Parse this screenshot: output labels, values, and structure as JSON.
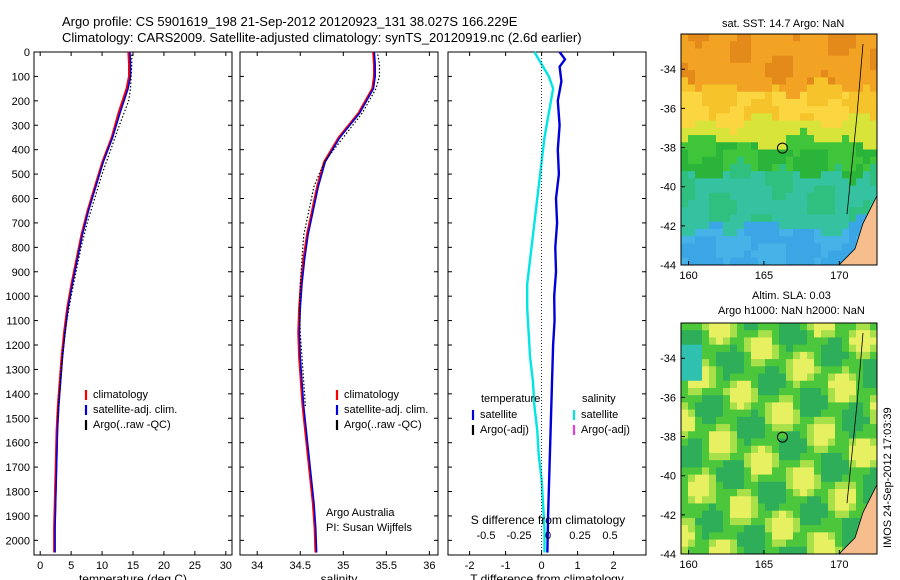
{
  "title_line1": "Argo profile: CS 5901619_198 21-Sep-2012 20120923_131 38.027S 166.229E",
  "title_line2": "Climatology: CARS2009. Satellite-adjusted climatology: synTS_20120919.nc (2.6d earlier)",
  "colors": {
    "climatology": "#ff0000",
    "satellite": "#0000dd",
    "argo": "#000000",
    "salinity_sat": "#00e5e5",
    "salinity_argo": "#e040e0"
  },
  "chart_data": [
    {
      "type": "line",
      "xlabel": "temperature (deg C)",
      "xlim": [
        -1,
        31
      ],
      "ylim": [
        2060,
        0
      ],
      "xticks": [
        0,
        5,
        10,
        15,
        20,
        25,
        30
      ],
      "yticks": [
        0,
        100,
        200,
        300,
        400,
        500,
        600,
        700,
        800,
        900,
        1000,
        1100,
        1200,
        1300,
        1400,
        1500,
        1600,
        1700,
        1800,
        1900,
        2000
      ],
      "legend": [
        "climatology",
        "satellite-adj. clim.",
        "Argo(..raw -QC)"
      ],
      "series": [
        {
          "name": "climatology",
          "x": [
            14.3,
            14.4,
            14.4,
            14.0,
            12.7,
            11.6,
            10.1,
            8.9,
            7.7,
            6.7,
            5.9,
            5.1,
            4.4,
            3.9,
            3.5,
            3.2,
            2.9,
            2.7,
            2.6,
            2.5,
            2.4,
            2.3,
            2.3
          ],
          "y": [
            0,
            50,
            100,
            150,
            250,
            350,
            450,
            550,
            650,
            750,
            850,
            950,
            1050,
            1150,
            1250,
            1350,
            1450,
            1550,
            1650,
            1750,
            1850,
            1950,
            2050
          ]
        },
        {
          "name": "satellite-adj. clim.",
          "x": [
            14.5,
            14.6,
            14.6,
            14.2,
            12.9,
            11.7,
            10.2,
            9.0,
            7.8,
            6.8,
            6.0,
            5.2,
            4.5,
            4.0,
            3.6,
            3.3,
            3.0,
            2.8,
            2.7,
            2.6,
            2.5,
            2.4,
            2.4
          ],
          "y": [
            0,
            50,
            100,
            150,
            250,
            350,
            450,
            550,
            650,
            750,
            850,
            950,
            1050,
            1150,
            1250,
            1350,
            1450,
            1550,
            1650,
            1750,
            1850,
            1950,
            2050
          ]
        },
        {
          "name": "Argo(..raw -QC)",
          "x": [
            14.8,
            14.8,
            14.7,
            14.6,
            14.3,
            12.8,
            11.4,
            10.0,
            8.8,
            7.6,
            6.6,
            5.8,
            5.0,
            4.3,
            3.8,
            3.4,
            3.1,
            2.8
          ],
          "y": [
            10,
            50,
            100,
            150,
            200,
            300,
            400,
            500,
            600,
            700,
            800,
            900,
            1000,
            1100,
            1200,
            1300,
            1400,
            1500
          ]
        }
      ]
    },
    {
      "type": "line",
      "xlabel": "salinity",
      "xlim": [
        33.8,
        36.1
      ],
      "ylim": [
        2060,
        0
      ],
      "xticks": [
        34,
        34.5,
        35,
        35.5,
        36
      ],
      "legend": [
        "climatology",
        "satellite-adj. clim.",
        "Argo(..raw -QC)"
      ],
      "annotation": [
        "Argo Australia",
        "PI: Susan Wijffels"
      ],
      "series": [
        {
          "name": "climatology",
          "x": [
            35.35,
            35.36,
            35.36,
            35.34,
            35.18,
            34.95,
            34.78,
            34.7,
            34.64,
            34.58,
            34.54,
            34.51,
            34.49,
            34.48,
            34.49,
            34.51,
            34.53,
            34.56,
            34.59,
            34.62,
            34.65,
            34.67,
            34.68
          ],
          "y": [
            0,
            50,
            100,
            150,
            250,
            350,
            450,
            550,
            650,
            750,
            850,
            950,
            1050,
            1150,
            1250,
            1350,
            1450,
            1550,
            1650,
            1750,
            1850,
            1950,
            2050
          ]
        },
        {
          "name": "satellite-adj. clim.",
          "x": [
            35.36,
            35.37,
            35.37,
            35.35,
            35.19,
            34.96,
            34.79,
            34.71,
            34.65,
            34.59,
            34.55,
            34.52,
            34.5,
            34.49,
            34.5,
            34.52,
            34.54,
            34.57,
            34.6,
            34.63,
            34.66,
            34.68,
            34.69
          ],
          "y": [
            0,
            50,
            100,
            150,
            250,
            350,
            450,
            550,
            650,
            750,
            850,
            950,
            1050,
            1150,
            1250,
            1350,
            1450,
            1550,
            1650,
            1750,
            1850,
            1950,
            2050
          ]
        },
        {
          "name": "Argo(..raw -QC)",
          "x": [
            35.4,
            35.42,
            35.42,
            35.38,
            35.22,
            35.0,
            34.78,
            34.66,
            34.6,
            34.54,
            34.52,
            34.5,
            34.49,
            34.5,
            34.52,
            34.54,
            34.56
          ],
          "y": [
            10,
            50,
            100,
            150,
            250,
            350,
            450,
            550,
            650,
            750,
            850,
            950,
            1050,
            1150,
            1250,
            1350,
            1450
          ]
        }
      ]
    },
    {
      "type": "line",
      "xlabel": "T difference from climatology",
      "xlabel2": "S difference from climatology",
      "xlim": [
        -2.6,
        2.9
      ],
      "ylim": [
        2060,
        0
      ],
      "xticks": [
        -2,
        -1,
        0,
        1,
        2
      ],
      "xticks2": [
        "-0.5",
        "-0.25",
        "0",
        "0.25",
        "0.5"
      ],
      "legend_temperature": [
        "temperature",
        "satellite",
        "Argo(-adj)"
      ],
      "legend_salinity": [
        "salinity",
        "satellite",
        "Argo(-adj)"
      ],
      "series": [
        {
          "name": "temperature satellite",
          "x": [
            0.5,
            0.65,
            0.5,
            0.55,
            0.45,
            0.5,
            0.45,
            0.48,
            0.4,
            0.43,
            0.38,
            0.4,
            0.35,
            0.36,
            0.32,
            0.3,
            0.28,
            0.26,
            0.24,
            0.22,
            0.2,
            0.18,
            0.16
          ],
          "y": [
            0,
            30,
            60,
            120,
            200,
            300,
            400,
            500,
            600,
            700,
            800,
            900,
            1000,
            1100,
            1200,
            1300,
            1400,
            1500,
            1600,
            1700,
            1800,
            1900,
            2050
          ]
        },
        {
          "name": "salinity satellite",
          "x": [
            -0.05,
            0.0,
            0.05,
            0.08,
            0.05,
            0.02,
            0.0,
            -0.02,
            -0.04,
            -0.06,
            -0.08,
            -0.1,
            -0.1,
            -0.09,
            -0.08,
            -0.06,
            -0.05,
            -0.03,
            -0.02,
            0.0,
            0.01,
            0.02,
            0.02
          ],
          "y": [
            0,
            50,
            100,
            150,
            250,
            350,
            450,
            550,
            650,
            750,
            850,
            950,
            1050,
            1150,
            1250,
            1350,
            1450,
            1550,
            1650,
            1750,
            1850,
            1950,
            2050
          ]
        }
      ]
    }
  ],
  "maps": {
    "sst_title": "sat. SST: 14.7 Argo: NaN",
    "sla_title1": "Altim. SLA: 0.03",
    "sla_title2": "Argo h1000: NaN h2000: NaN",
    "lon_ticks": [
      160,
      165,
      170
    ],
    "lat_ticks": [
      -34,
      -36,
      -38,
      -40,
      -42,
      -44
    ],
    "lon_range": [
      159.5,
      172.5
    ],
    "lat_range": [
      -44,
      -32.2
    ],
    "argo_position": [
      166.229,
      -38.027
    ]
  },
  "stamp": "IMOS 24-Sep-2012 17:03:39"
}
